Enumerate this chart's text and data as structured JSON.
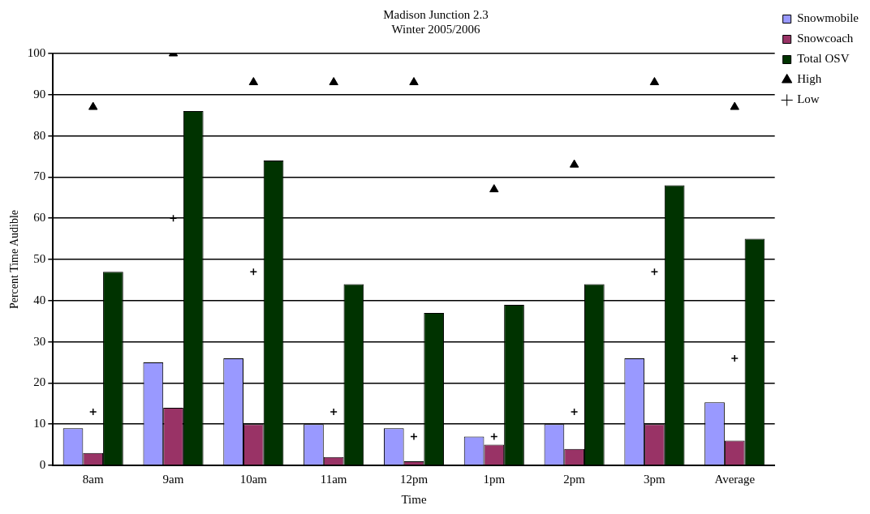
{
  "chart_data": {
    "type": "bar",
    "title": "Madison Junction 2.3",
    "subtitle": "Winter 2005/2006",
    "xlabel": "Time",
    "ylabel": "Percent Time Audible",
    "categories": [
      "8am",
      "9am",
      "10am",
      "11am",
      "12pm",
      "1pm",
      "2pm",
      "3pm",
      "Average"
    ],
    "series": [
      {
        "name": "Snowmobile",
        "color": "#9999ff",
        "values": [
          9,
          25,
          26,
          10,
          9,
          7,
          10,
          26,
          15.3
        ]
      },
      {
        "name": "Snowcoach",
        "color": "#993366",
        "values": [
          3,
          14,
          10,
          2,
          1,
          5,
          4,
          10,
          6
        ]
      },
      {
        "name": "Total OSV",
        "color": "#003300",
        "values": [
          47,
          86,
          74,
          44,
          37,
          39,
          44,
          68,
          55
        ]
      },
      {
        "name": "High",
        "type": "scatter",
        "marker": "triangle",
        "color": "#000000",
        "x": [
          "8am",
          "9am",
          "10am",
          "11am",
          "12pm",
          "1pm",
          "2pm",
          "3pm",
          "Average"
        ],
        "values": [
          87,
          100,
          93,
          93,
          93,
          67,
          73,
          93,
          87
        ]
      },
      {
        "name": "Low",
        "type": "scatter",
        "marker": "cross",
        "color": "#000000",
        "x": [
          "8am",
          "9am",
          "10am",
          "11am",
          "12pm",
          "1pm",
          "2pm",
          "3pm",
          "Average"
        ],
        "values": [
          13,
          60,
          47,
          13,
          7,
          7,
          13,
          47,
          26
        ]
      }
    ],
    "ylim": [
      0,
      100
    ],
    "yticks": [
      0,
      10,
      20,
      30,
      40,
      50,
      60,
      70,
      80,
      90,
      100
    ],
    "grid": "y",
    "legend": "top right"
  }
}
